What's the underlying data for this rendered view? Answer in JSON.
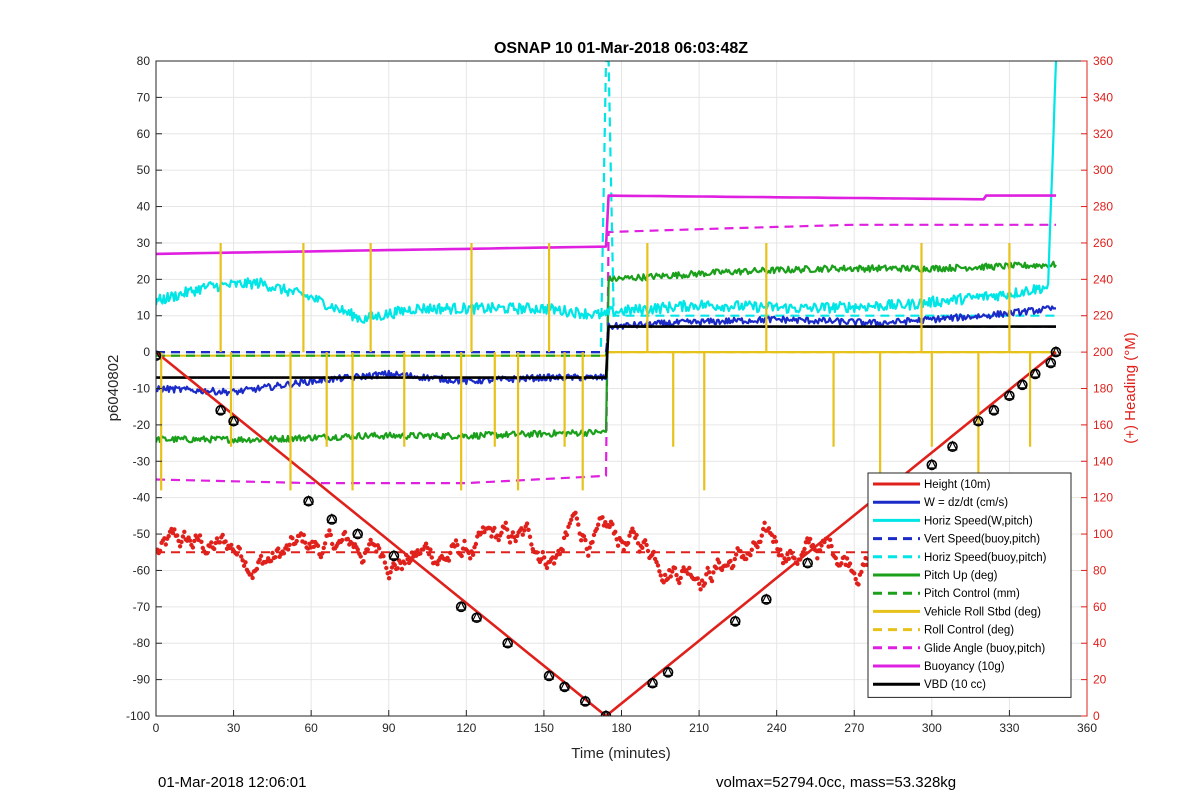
{
  "chart_data": {
    "type": "line",
    "title": "OSNAP 10 01-Mar-2018 06:03:48Z",
    "xlabel": "Time (minutes)",
    "ylabel_left": "p6040802",
    "ylabel_right": "(+) Heading (°M)",
    "xlim": [
      0,
      360
    ],
    "ylim_left": [
      -100,
      80
    ],
    "ylim_right": [
      0,
      360
    ],
    "x_ticks": [
      "0",
      "30",
      "60",
      "90",
      "120",
      "150",
      "180",
      "210",
      "240",
      "270",
      "300",
      "330",
      "360"
    ],
    "y_ticks_left": [
      "80",
      "70",
      "60",
      "50",
      "40",
      "30",
      "20",
      "10",
      "0",
      "-10",
      "-20",
      "-30",
      "-40",
      "-50",
      "-60",
      "-70",
      "-80",
      "-90",
      "-100"
    ],
    "y_ticks_right": [
      "360",
      "340",
      "320",
      "300",
      "280",
      "260",
      "240",
      "220",
      "200",
      "180",
      "160",
      "140",
      "120",
      "100",
      "80",
      "60",
      "40",
      "20",
      "0"
    ],
    "grid": true,
    "legend_position": "lower-right",
    "right_axis_color": "#e0201b",
    "series": [
      {
        "name": "Height (10m)",
        "color": "#e0201b",
        "style": "solid",
        "x": [
          0,
          174,
          348
        ],
        "y": [
          0,
          -100,
          0
        ]
      },
      {
        "name": "W = dz/dt (cm/s)",
        "color": "#1b2bc8",
        "style": "solid",
        "x": [
          0,
          30,
          60,
          90,
          120,
          150,
          174,
          175,
          200,
          240,
          280,
          320,
          348
        ],
        "y": [
          -10,
          -11,
          -8,
          -6,
          -8,
          -7,
          -7,
          7,
          8,
          9,
          8,
          10,
          12
        ]
      },
      {
        "name": "Horiz Speed(W,pitch)",
        "color": "#00e5e5",
        "style": "solid",
        "x": [
          0,
          20,
          40,
          60,
          80,
          100,
          120,
          150,
          174,
          175,
          210,
          250,
          290,
          330,
          345,
          348
        ],
        "y": [
          14,
          18,
          19,
          15,
          9,
          12,
          12,
          12,
          10,
          11,
          13,
          12,
          13,
          16,
          18,
          80
        ]
      },
      {
        "name": "Vert Speed(buoy,pitch)",
        "color": "#1b2bc8",
        "style": "dashed",
        "x": [
          0,
          174,
          175,
          348
        ],
        "y": [
          0,
          0,
          7,
          7
        ]
      },
      {
        "name": "Horiz Speed(buoy,pitch)",
        "color": "#00e5e5",
        "style": "dashed",
        "x": [
          0,
          172,
          174,
          175,
          177,
          348
        ],
        "y": [
          0,
          0,
          80,
          80,
          10,
          10
        ]
      },
      {
        "name": "Pitch Up (deg)",
        "color": "#1aa01a",
        "style": "solid",
        "x": [
          0,
          40,
          80,
          120,
          174,
          175,
          220,
          260,
          300,
          348
        ],
        "y": [
          -24,
          -24,
          -23,
          -23,
          -22,
          20,
          22,
          23,
          23,
          24
        ]
      },
      {
        "name": "Pitch Control (mm)",
        "color": "#1aa01a",
        "style": "dashed",
        "x": [
          0,
          174,
          175,
          348
        ],
        "y": [
          -1,
          -1,
          7,
          7
        ]
      },
      {
        "name": "Vehicle Roll Stbd (deg)",
        "color": "#e6c21a",
        "style": "solid",
        "x": [
          0,
          60,
          120,
          174,
          175,
          240,
          300,
          348
        ],
        "y": [
          -1,
          -1,
          -1,
          -1,
          0,
          0,
          0,
          0
        ]
      },
      {
        "name": "Roll Control (deg)",
        "color": "#e6c21a",
        "style": "dashed",
        "x": [
          0,
          174,
          175,
          348
        ],
        "y": [
          0,
          0,
          0,
          0
        ]
      },
      {
        "name": "Glide Angle (buoy,pitch)",
        "color": "#e020e0",
        "style": "dashed",
        "x": [
          0,
          60,
          120,
          174,
          175,
          220,
          270,
          320,
          348
        ],
        "y": [
          -35,
          -36,
          -36,
          -34,
          33,
          34,
          35,
          35,
          35
        ]
      },
      {
        "name": "Buoyancy (10g)",
        "color": "#e020e0",
        "style": "solid",
        "x": [
          0,
          174,
          175,
          320,
          321,
          348
        ],
        "y": [
          27,
          29,
          43,
          42,
          43,
          43
        ]
      },
      {
        "name": "VBD (10 cc)",
        "color": "#000000",
        "style": "solid",
        "x": [
          0,
          174,
          175,
          348
        ],
        "y": [
          -7,
          -7,
          7,
          7
        ]
      }
    ],
    "heading_series": {
      "color": "#e0201b",
      "style": "dots",
      "axis": "right",
      "mean": 90,
      "min": 55,
      "max": 140
    },
    "heading_mean_line": {
      "color": "#e0201b",
      "style": "dashed",
      "axis": "right",
      "value": 90
    },
    "marker_points": {
      "axis": "left",
      "x": [
        0,
        25,
        30,
        59,
        68,
        78,
        92,
        118,
        124,
        136,
        152,
        158,
        166,
        174,
        192,
        198,
        224,
        236,
        252,
        286,
        300,
        308,
        318,
        324,
        330,
        335,
        340,
        346,
        348
      ],
      "y": [
        -1,
        -16,
        -19,
        -41,
        -46,
        -50,
        -56,
        -70,
        -73,
        -80,
        -89,
        -92,
        -96,
        -100,
        -91,
        -88,
        -74,
        -68,
        -58,
        -39,
        -31,
        -26,
        -19,
        -16,
        -12,
        -9,
        -6,
        -3,
        0
      ]
    }
  },
  "footer": {
    "timestamp": "01-Mar-2018 12:06:01",
    "info": "volmax=52794.0cc, mass=53.328kg"
  }
}
